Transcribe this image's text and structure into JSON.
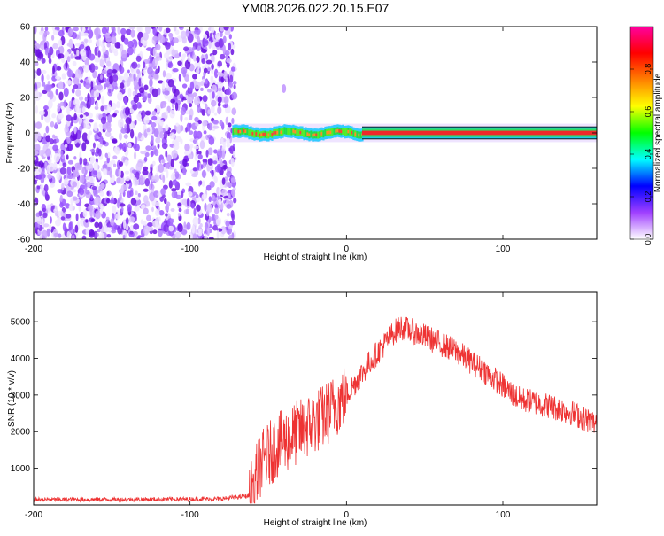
{
  "title": "YM08.2026.022.20.15.E07",
  "chart_data": [
    {
      "type": "heatmap",
      "name": "spectrogram",
      "xlabel": "Height of straight line (km)",
      "ylabel": "Frequency (Hz)",
      "xlim": [
        -200,
        160
      ],
      "ylim": [
        -60,
        60
      ],
      "xticks": [
        -200,
        -100,
        0,
        100
      ],
      "yticks": [
        -60,
        -40,
        -20,
        0,
        20,
        40,
        60
      ],
      "noise_region_x": [
        -200,
        -73
      ],
      "signal_band": {
        "x_start": -73,
        "x_end": 160,
        "center_hz": 0,
        "half_width_hz": 2,
        "peak_amplitude": 1.0
      },
      "isolated_blob": {
        "x": -40,
        "y": 25
      },
      "colorbar": {
        "label": "Normalized spectral amplitude",
        "range": [
          0,
          1
        ],
        "ticks": [
          "0.0",
          "0.2",
          "0.4",
          "0.6",
          "0.8"
        ],
        "colors": [
          "#ffffff",
          "#a040ff",
          "#0000ff",
          "#00ffff",
          "#00ff00",
          "#ffff00",
          "#ff8000",
          "#ff0000",
          "#ff00a0"
        ]
      }
    },
    {
      "type": "line",
      "name": "snr",
      "xlabel": "Height of straight line (km)",
      "ylabel": "SNR (10 * v/v)",
      "xlim": [
        -200,
        160
      ],
      "ylim": [
        0,
        5800
      ],
      "xticks": [
        -200,
        -100,
        0,
        100
      ],
      "yticks": [
        1000,
        2000,
        3000,
        4000,
        5000
      ],
      "color": "#ee3333",
      "series": [
        {
          "name": "SNR",
          "x": [
            -200,
            -150,
            -100,
            -80,
            -62,
            -55,
            -45,
            -30,
            -15,
            0,
            15,
            30,
            35,
            50,
            70,
            90,
            110,
            130,
            145,
            160
          ],
          "values": [
            150,
            150,
            160,
            170,
            250,
            1100,
            1600,
            2000,
            2400,
            3000,
            3900,
            4700,
            4850,
            4600,
            4200,
            3600,
            2900,
            2700,
            2500,
            2200
          ]
        }
      ]
    }
  ]
}
